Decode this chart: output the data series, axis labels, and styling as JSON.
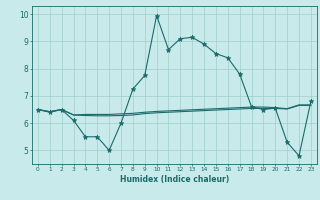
{
  "xlabel": "Humidex (Indice chaleur)",
  "background_color": "#c8eaea",
  "line_color": "#1a6b6b",
  "grid_color": "#a0cccc",
  "xlim": [
    -0.5,
    23.5
  ],
  "ylim": [
    4.5,
    10.3
  ],
  "xticks": [
    0,
    1,
    2,
    3,
    4,
    5,
    6,
    7,
    8,
    9,
    10,
    11,
    12,
    13,
    14,
    15,
    16,
    17,
    18,
    19,
    20,
    21,
    22,
    23
  ],
  "yticks": [
    5,
    6,
    7,
    8,
    9,
    10
  ],
  "line1_x": [
    0,
    1,
    2,
    3,
    4,
    5,
    6,
    7,
    8,
    9,
    10,
    11,
    12,
    13,
    14,
    15,
    16,
    17,
    18,
    19,
    20,
    21,
    22,
    23
  ],
  "line1_y": [
    6.5,
    6.4,
    6.5,
    6.1,
    5.5,
    5.5,
    5.0,
    6.0,
    7.25,
    7.75,
    9.95,
    8.7,
    9.1,
    9.15,
    8.9,
    8.55,
    8.4,
    7.8,
    6.6,
    6.5,
    6.55,
    5.3,
    4.8,
    6.8
  ],
  "line2_x": [
    0,
    1,
    2,
    3,
    4,
    5,
    6,
    7,
    8,
    9,
    10,
    11,
    12,
    13,
    14,
    15,
    16,
    17,
    18,
    19,
    20,
    21,
    22,
    23
  ],
  "line2_y": [
    6.5,
    6.42,
    6.5,
    6.3,
    6.28,
    6.27,
    6.27,
    6.28,
    6.3,
    6.35,
    6.38,
    6.4,
    6.42,
    6.44,
    6.46,
    6.48,
    6.5,
    6.52,
    6.54,
    6.54,
    6.54,
    6.52,
    6.65,
    6.65
  ],
  "line3_x": [
    0,
    1,
    2,
    3,
    4,
    5,
    6,
    7,
    8,
    9,
    10,
    11,
    12,
    13,
    14,
    15,
    16,
    17,
    18,
    19,
    20,
    21,
    22,
    23
  ],
  "line3_y": [
    6.5,
    6.42,
    6.5,
    6.3,
    6.32,
    6.32,
    6.32,
    6.34,
    6.36,
    6.4,
    6.43,
    6.45,
    6.47,
    6.49,
    6.51,
    6.53,
    6.55,
    6.57,
    6.59,
    6.59,
    6.57,
    6.53,
    6.67,
    6.67
  ]
}
